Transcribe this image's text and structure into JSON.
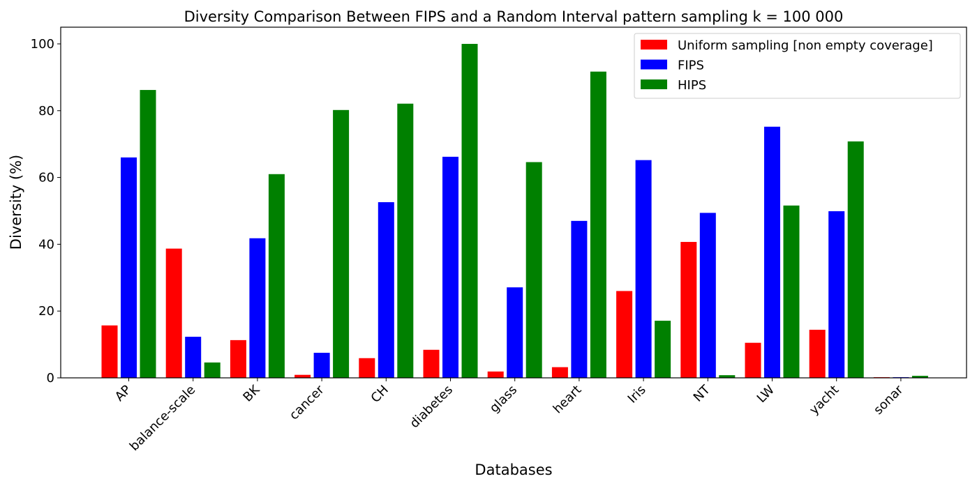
{
  "chart_data": {
    "type": "bar",
    "title": "Diversity Comparison Between FIPS and a Random Interval pattern sampling k = 100 000",
    "xlabel": "Databases",
    "ylabel": "Diversity (%)",
    "ylim": [
      0,
      105
    ],
    "yticks": [
      0,
      20,
      40,
      60,
      80,
      100
    ],
    "grid": false,
    "legend_position": "top-right",
    "categories": [
      "AP",
      "balance-scale",
      "BK",
      "cancer",
      "CH",
      "diabetes",
      "glass",
      "heart",
      "Iris",
      "NT",
      "LW",
      "yacht",
      "sonar"
    ],
    "series": [
      {
        "name": "Uniform sampling [non empty coverage]",
        "color": "#ff0000",
        "values": [
          15.7,
          38.7,
          11.3,
          0.9,
          5.9,
          8.4,
          1.9,
          3.2,
          26.0,
          40.7,
          10.5,
          14.4,
          0.2
        ]
      },
      {
        "name": "FIPS",
        "color": "#0000ff",
        "values": [
          66.0,
          12.3,
          41.8,
          7.5,
          52.6,
          66.2,
          27.1,
          47.0,
          65.2,
          49.4,
          75.2,
          49.9,
          0.2
        ]
      },
      {
        "name": "HIPS",
        "color": "#008000",
        "values": [
          86.2,
          4.6,
          61.0,
          80.2,
          82.1,
          100.0,
          64.6,
          91.7,
          17.1,
          0.8,
          51.6,
          70.8,
          0.6
        ]
      }
    ]
  }
}
